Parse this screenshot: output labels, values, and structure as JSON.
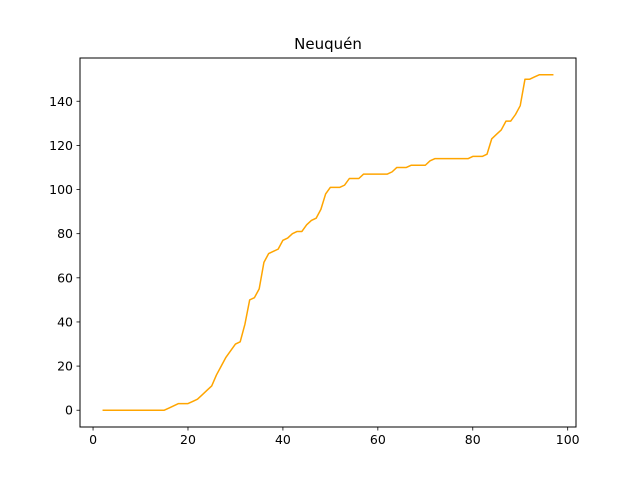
{
  "chart_data": {
    "type": "line",
    "title": "Neuquén",
    "xlabel": "",
    "ylabel": "",
    "xlim": [
      -2.75,
      101.75
    ],
    "ylim": [
      -7.6,
      159.6
    ],
    "xticks": [
      0,
      20,
      40,
      60,
      80,
      100
    ],
    "yticks": [
      0,
      20,
      40,
      60,
      80,
      100,
      120,
      140
    ],
    "grid": false,
    "series": [
      {
        "color": "#ffa500",
        "x": [
          2,
          3,
          4,
          5,
          6,
          7,
          8,
          9,
          10,
          11,
          12,
          13,
          14,
          15,
          16,
          17,
          18,
          19,
          20,
          21,
          22,
          23,
          24,
          25,
          26,
          27,
          28,
          29,
          30,
          31,
          32,
          33,
          34,
          35,
          36,
          37,
          38,
          39,
          40,
          41,
          42,
          43,
          44,
          45,
          46,
          47,
          48,
          49,
          50,
          51,
          52,
          53,
          54,
          55,
          56,
          57,
          58,
          59,
          60,
          61,
          62,
          63,
          64,
          65,
          66,
          67,
          68,
          69,
          70,
          71,
          72,
          73,
          74,
          75,
          76,
          77,
          78,
          79,
          80,
          81,
          82,
          83,
          84,
          85,
          86,
          87,
          88,
          89,
          90,
          91,
          92,
          93,
          94,
          95,
          96,
          97
        ],
        "y": [
          0,
          0,
          0,
          0,
          0,
          0,
          0,
          0,
          0,
          0,
          0,
          0,
          0,
          0,
          1,
          2,
          3,
          3,
          3,
          4,
          5,
          7,
          9,
          11,
          16,
          20,
          24,
          27,
          30,
          31,
          39,
          50,
          51,
          55,
          67,
          71,
          72,
          73,
          77,
          78,
          80,
          81,
          81,
          84,
          86,
          87,
          91,
          98,
          101,
          101,
          101,
          102,
          105,
          105,
          105,
          107,
          107,
          107,
          107,
          107,
          107,
          108,
          110,
          110,
          110,
          111,
          111,
          111,
          111,
          113,
          114,
          114,
          114,
          114,
          114,
          114,
          114,
          114,
          115,
          115,
          115,
          116,
          123,
          125,
          127,
          131,
          131,
          134,
          138,
          150,
          150,
          151,
          152,
          152,
          152,
          152
        ]
      }
    ]
  }
}
